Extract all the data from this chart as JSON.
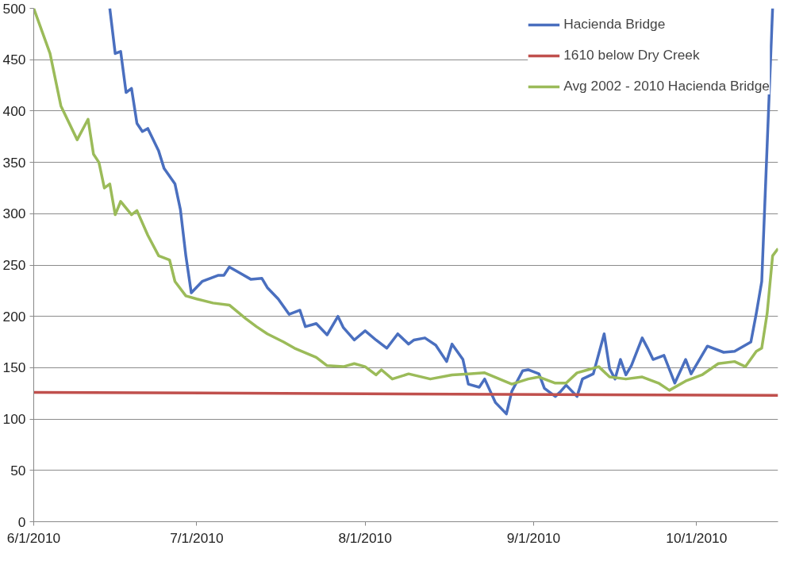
{
  "chart_data": {
    "type": "line",
    "xlim": [
      "2010-06-01",
      "2010-10-16"
    ],
    "xticks": [
      {
        "value": "2010-06-01",
        "label": "6/1/2010"
      },
      {
        "value": "2010-07-01",
        "label": "7/1/2010"
      },
      {
        "value": "2010-08-01",
        "label": "8/1/2010"
      },
      {
        "value": "2010-09-01",
        "label": "9/1/2010"
      },
      {
        "value": "2010-10-01",
        "label": "10/1/2010"
      }
    ],
    "ylim": [
      0,
      500
    ],
    "yticks": [
      0,
      50,
      100,
      150,
      200,
      250,
      300,
      350,
      400,
      450,
      500
    ],
    "grid": "y",
    "legend": "top right",
    "marker": "none",
    "line_style": "solid",
    "series": [
      {
        "name": "Hacienda Bridge",
        "color": "#4a6fbf",
        "x": [
          "2010-06-15",
          "2010-06-16",
          "2010-06-17",
          "2010-06-18",
          "2010-06-19",
          "2010-06-20",
          "2010-06-21",
          "2010-06-22",
          "2010-06-24",
          "2010-06-25",
          "2010-06-27",
          "2010-06-28",
          "2010-06-29",
          "2010-06-30",
          "2010-07-02",
          "2010-07-05",
          "2010-07-06",
          "2010-07-07",
          "2010-07-09",
          "2010-07-11",
          "2010-07-13",
          "2010-07-14",
          "2010-07-16",
          "2010-07-18",
          "2010-07-20",
          "2010-07-21",
          "2010-07-23",
          "2010-07-25",
          "2010-07-27",
          "2010-07-28",
          "2010-07-30",
          "2010-08-01",
          "2010-08-03",
          "2010-08-05",
          "2010-08-07",
          "2010-08-09",
          "2010-08-10",
          "2010-08-12",
          "2010-08-14",
          "2010-08-16",
          "2010-08-17",
          "2010-08-19",
          "2010-08-20",
          "2010-08-22",
          "2010-08-23",
          "2010-08-25",
          "2010-08-27",
          "2010-08-28",
          "2010-08-30",
          "2010-08-31",
          "2010-09-02",
          "2010-09-03",
          "2010-09-05",
          "2010-09-06",
          "2010-09-07",
          "2010-09-09",
          "2010-09-10",
          "2010-09-12",
          "2010-09-14",
          "2010-09-15",
          "2010-09-16",
          "2010-09-17",
          "2010-09-18",
          "2010-09-19",
          "2010-09-21",
          "2010-09-22",
          "2010-09-23",
          "2010-09-25",
          "2010-09-27",
          "2010-09-29",
          "2010-09-30",
          "2010-10-03",
          "2010-10-06",
          "2010-10-08",
          "2010-10-11",
          "2010-10-12",
          "2010-10-13",
          "2010-10-15"
        ],
        "values": [
          500,
          456,
          458,
          418,
          422,
          388,
          380,
          383,
          361,
          344,
          329,
          304,
          259,
          223,
          234,
          240,
          240,
          248,
          242,
          236,
          237,
          228,
          217,
          202,
          206,
          190,
          193,
          182,
          200,
          189,
          177,
          186,
          177,
          169,
          183,
          173,
          177,
          179,
          172,
          156,
          173,
          158,
          134,
          131,
          139,
          116,
          105,
          127,
          147,
          148,
          144,
          130,
          122,
          127,
          133,
          122,
          139,
          144,
          183,
          149,
          139,
          158,
          143,
          152,
          179,
          169,
          158,
          162,
          135,
          158,
          144,
          171,
          165,
          166,
          175,
          203,
          234,
          500
        ]
      },
      {
        "name": "1610 below Dry Creek",
        "color": "#c0504d",
        "x": [
          "2010-06-01",
          "2010-10-16"
        ],
        "values": [
          126,
          123
        ]
      },
      {
        "name": "Avg 2002 - 2010 Hacienda Bridge",
        "color": "#9bbb59",
        "x": [
          "2010-06-01",
          "2010-06-04",
          "2010-06-06",
          "2010-06-09",
          "2010-06-11",
          "2010-06-12",
          "2010-06-13",
          "2010-06-14",
          "2010-06-15",
          "2010-06-16",
          "2010-06-17",
          "2010-06-19",
          "2010-06-20",
          "2010-06-22",
          "2010-06-24",
          "2010-06-26",
          "2010-06-27",
          "2010-06-29",
          "2010-07-01",
          "2010-07-04",
          "2010-07-07",
          "2010-07-10",
          "2010-07-12",
          "2010-07-14",
          "2010-07-17",
          "2010-07-19",
          "2010-07-23",
          "2010-07-25",
          "2010-07-28",
          "2010-07-30",
          "2010-08-01",
          "2010-08-03",
          "2010-08-04",
          "2010-08-06",
          "2010-08-09",
          "2010-08-13",
          "2010-08-17",
          "2010-08-20",
          "2010-08-23",
          "2010-08-28",
          "2010-08-31",
          "2010-09-02",
          "2010-09-05",
          "2010-09-07",
          "2010-09-09",
          "2010-09-11",
          "2010-09-13",
          "2010-09-15",
          "2010-09-18",
          "2010-09-21",
          "2010-09-24",
          "2010-09-26",
          "2010-09-29",
          "2010-10-02",
          "2010-10-05",
          "2010-10-08",
          "2010-10-10",
          "2010-10-12",
          "2010-10-13",
          "2010-10-14",
          "2010-10-15",
          "2010-10-16"
        ],
        "values": [
          500,
          456,
          405,
          372,
          392,
          358,
          350,
          325,
          329,
          299,
          312,
          299,
          303,
          279,
          259,
          255,
          234,
          220,
          217,
          213,
          211,
          198,
          190,
          183,
          175,
          169,
          160,
          152,
          151,
          154,
          151,
          143,
          148,
          139,
          144,
          139,
          143,
          144,
          145,
          134,
          139,
          141,
          135,
          135,
          145,
          148,
          151,
          141,
          139,
          141,
          135,
          128,
          137,
          143,
          154,
          156,
          151,
          166,
          169,
          203,
          259,
          266
        ]
      }
    ]
  }
}
